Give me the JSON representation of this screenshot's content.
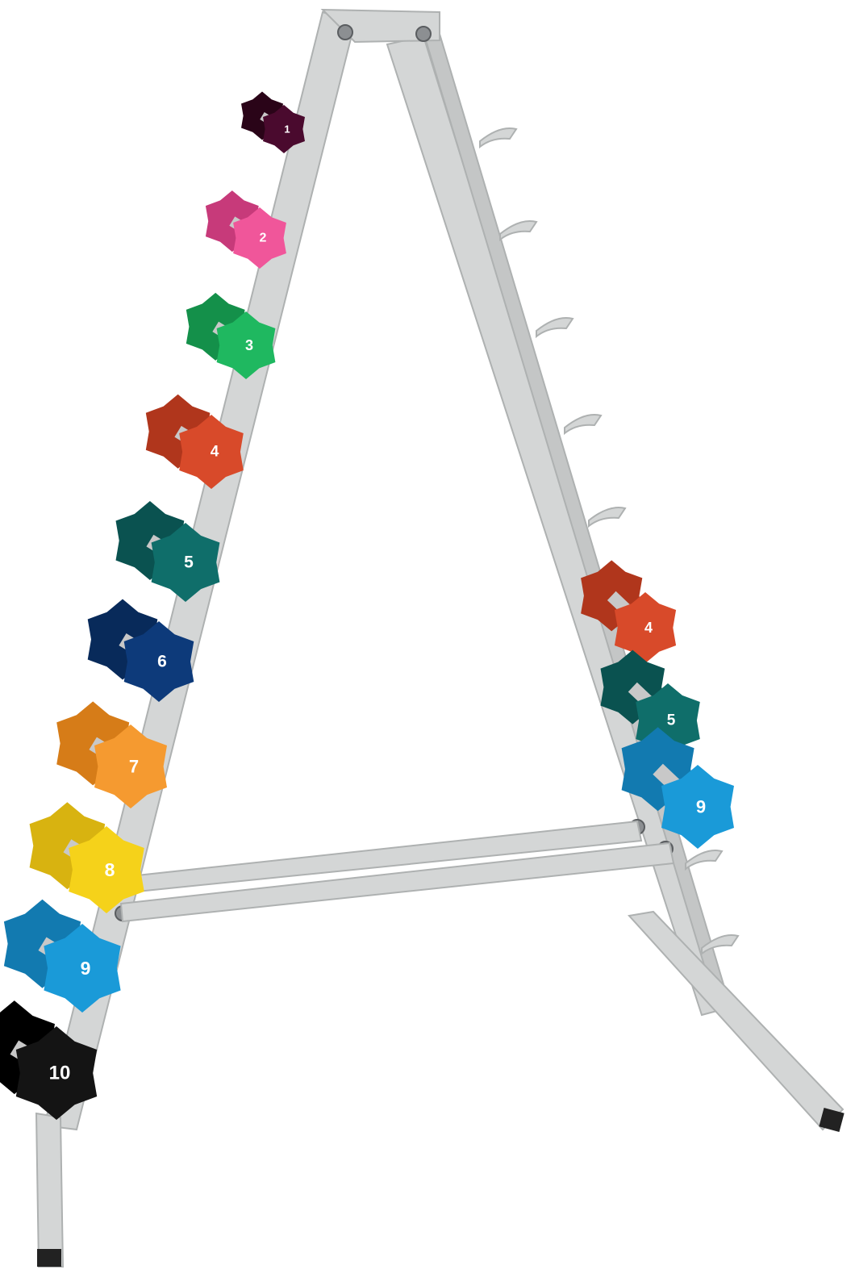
{
  "rack": {
    "frame_color": "#d4d6d6",
    "frame_shadow": "#aeb1b1",
    "bolt_color": "#8c8f92"
  },
  "left_side": {
    "dumbbells": [
      {
        "label": "1",
        "color": "#4a0a2e",
        "dark": "#2a0418"
      },
      {
        "label": "2",
        "color": "#f0569a",
        "dark": "#c73a7a"
      },
      {
        "label": "3",
        "color": "#1fb860",
        "dark": "#14904a"
      },
      {
        "label": "4",
        "color": "#d84a2a",
        "dark": "#b0361c"
      },
      {
        "label": "5",
        "color": "#0f6e6a",
        "dark": "#0a5250"
      },
      {
        "label": "6",
        "color": "#0d3a7a",
        "dark": "#082a5a"
      },
      {
        "label": "7",
        "color": "#f59a30",
        "dark": "#d67c18"
      },
      {
        "label": "8",
        "color": "#f5d21a",
        "dark": "#d8b310"
      },
      {
        "label": "9",
        "color": "#1a9ad8",
        "dark": "#127ab0"
      },
      {
        "label": "10",
        "color": "#141414",
        "dark": "#000000"
      }
    ]
  },
  "right_side": {
    "dumbbells": [
      {
        "label": "4",
        "color": "#d84a2a",
        "dark": "#b0361c"
      },
      {
        "label": "5",
        "color": "#0f6e6a",
        "dark": "#0a5250"
      },
      {
        "label": "9",
        "color": "#1a9ad8",
        "dark": "#127ab0"
      }
    ]
  }
}
